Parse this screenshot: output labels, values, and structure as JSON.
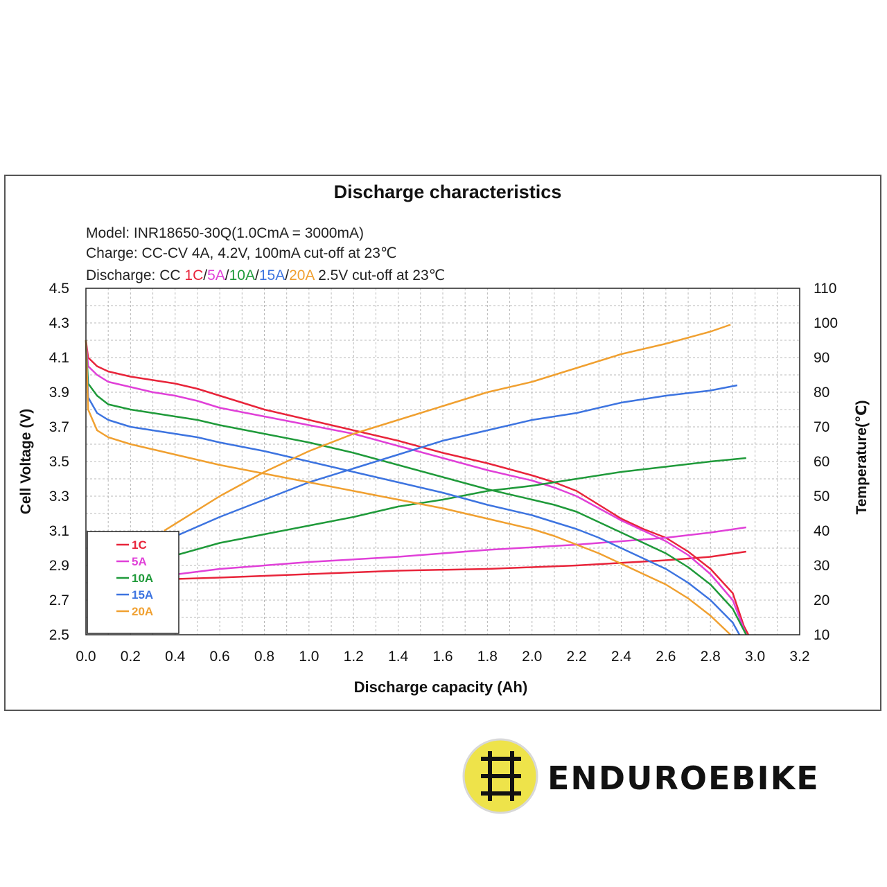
{
  "brand": {
    "name": "ENDUROEBIKE"
  },
  "chart_data": {
    "type": "line",
    "title": "Discharge characteristics",
    "info_lines": {
      "model": "Model: INR18650-30Q(1.0CmA = 3000mA)",
      "charge": "Charge: CC-CV 4A, 4.2V, 100mA cut-off at 23℃",
      "discharge_prefix": "Discharge: CC ",
      "discharge_suffix": " 2.5V cut-off at 23℃"
    },
    "xlabel": "Discharge capacity (Ah)",
    "ylabel": "Cell Voltage (V)",
    "y2label": "Temperature(℃)",
    "xlim": [
      0,
      3.2
    ],
    "ylim": [
      2.5,
      4.5
    ],
    "y2lim": [
      10,
      110
    ],
    "x_ticks": [
      "0.0",
      "0.2",
      "0.4",
      "0.6",
      "0.8",
      "1.0",
      "1.2",
      "1.4",
      "1.6",
      "1.8",
      "2.0",
      "2.2",
      "2.4",
      "2.6",
      "2.8",
      "3.0",
      "3.2"
    ],
    "y_ticks": [
      "2.5",
      "2.7",
      "2.9",
      "3.1",
      "3.3",
      "3.5",
      "3.7",
      "3.9",
      "4.1",
      "4.3",
      "4.5"
    ],
    "y2_ticks": [
      "10",
      "20",
      "30",
      "40",
      "50",
      "60",
      "70",
      "80",
      "90",
      "100",
      "110"
    ],
    "legend_position": "bottom-left",
    "grid": true,
    "series": [
      {
        "name": "1C",
        "color": "#e8243a",
        "voltage": [
          [
            0,
            4.2
          ],
          [
            0.01,
            4.1
          ],
          [
            0.05,
            4.05
          ],
          [
            0.1,
            4.02
          ],
          [
            0.2,
            3.99
          ],
          [
            0.3,
            3.97
          ],
          [
            0.4,
            3.95
          ],
          [
            0.5,
            3.92
          ],
          [
            0.6,
            3.88
          ],
          [
            0.8,
            3.8
          ],
          [
            1.0,
            3.74
          ],
          [
            1.2,
            3.68
          ],
          [
            1.4,
            3.62
          ],
          [
            1.6,
            3.55
          ],
          [
            1.8,
            3.49
          ],
          [
            2.0,
            3.42
          ],
          [
            2.1,
            3.38
          ],
          [
            2.2,
            3.33
          ],
          [
            2.3,
            3.25
          ],
          [
            2.4,
            3.17
          ],
          [
            2.5,
            3.11
          ],
          [
            2.6,
            3.06
          ],
          [
            2.7,
            2.98
          ],
          [
            2.8,
            2.88
          ],
          [
            2.9,
            2.74
          ],
          [
            2.95,
            2.55
          ],
          [
            2.97,
            2.5
          ]
        ],
        "temperature": [
          [
            0.35,
            26
          ],
          [
            0.6,
            26.5
          ],
          [
            1.0,
            27.5
          ],
          [
            1.4,
            28.5
          ],
          [
            1.8,
            29
          ],
          [
            2.2,
            30
          ],
          [
            2.6,
            31.5
          ],
          [
            2.8,
            32.5
          ],
          [
            2.96,
            34
          ]
        ]
      },
      {
        "name": "5A",
        "color": "#e040d8",
        "voltage": [
          [
            0,
            4.2
          ],
          [
            0.01,
            4.05
          ],
          [
            0.05,
            4.0
          ],
          [
            0.1,
            3.96
          ],
          [
            0.2,
            3.93
          ],
          [
            0.3,
            3.9
          ],
          [
            0.4,
            3.88
          ],
          [
            0.5,
            3.85
          ],
          [
            0.6,
            3.81
          ],
          [
            0.8,
            3.76
          ],
          [
            1.0,
            3.71
          ],
          [
            1.2,
            3.66
          ],
          [
            1.4,
            3.59
          ],
          [
            1.6,
            3.52
          ],
          [
            1.8,
            3.45
          ],
          [
            2.0,
            3.39
          ],
          [
            2.1,
            3.35
          ],
          [
            2.2,
            3.3
          ],
          [
            2.3,
            3.23
          ],
          [
            2.4,
            3.16
          ],
          [
            2.5,
            3.1
          ],
          [
            2.6,
            3.04
          ],
          [
            2.7,
            2.96
          ],
          [
            2.8,
            2.85
          ],
          [
            2.9,
            2.7
          ],
          [
            2.96,
            2.5
          ]
        ],
        "temperature": [
          [
            0.35,
            27
          ],
          [
            0.6,
            29
          ],
          [
            1.0,
            31
          ],
          [
            1.4,
            32.5
          ],
          [
            1.8,
            34.5
          ],
          [
            2.2,
            36
          ],
          [
            2.6,
            38
          ],
          [
            2.8,
            39.5
          ],
          [
            2.96,
            41
          ]
        ]
      },
      {
        "name": "10A",
        "color": "#1f9a3a",
        "voltage": [
          [
            0,
            4.2
          ],
          [
            0.01,
            3.95
          ],
          [
            0.05,
            3.88
          ],
          [
            0.1,
            3.83
          ],
          [
            0.2,
            3.8
          ],
          [
            0.3,
            3.78
          ],
          [
            0.4,
            3.76
          ],
          [
            0.5,
            3.74
          ],
          [
            0.6,
            3.71
          ],
          [
            0.8,
            3.66
          ],
          [
            1.0,
            3.61
          ],
          [
            1.2,
            3.55
          ],
          [
            1.4,
            3.48
          ],
          [
            1.6,
            3.41
          ],
          [
            1.8,
            3.34
          ],
          [
            2.0,
            3.28
          ],
          [
            2.1,
            3.25
          ],
          [
            2.2,
            3.21
          ],
          [
            2.3,
            3.15
          ],
          [
            2.4,
            3.09
          ],
          [
            2.5,
            3.03
          ],
          [
            2.6,
            2.97
          ],
          [
            2.7,
            2.89
          ],
          [
            2.8,
            2.79
          ],
          [
            2.9,
            2.65
          ],
          [
            2.96,
            2.5
          ]
        ],
        "temperature": [
          [
            0.35,
            32
          ],
          [
            0.6,
            36.5
          ],
          [
            0.8,
            39
          ],
          [
            1.0,
            41.5
          ],
          [
            1.2,
            44
          ],
          [
            1.4,
            47
          ],
          [
            1.6,
            49
          ],
          [
            1.8,
            51.5
          ],
          [
            2.0,
            53
          ],
          [
            2.2,
            55
          ],
          [
            2.4,
            57
          ],
          [
            2.6,
            58.5
          ],
          [
            2.8,
            60
          ],
          [
            2.96,
            61
          ]
        ]
      },
      {
        "name": "15A",
        "color": "#3d74e0",
        "voltage": [
          [
            0,
            4.2
          ],
          [
            0.01,
            3.87
          ],
          [
            0.05,
            3.78
          ],
          [
            0.1,
            3.74
          ],
          [
            0.2,
            3.7
          ],
          [
            0.3,
            3.68
          ],
          [
            0.4,
            3.66
          ],
          [
            0.5,
            3.64
          ],
          [
            0.6,
            3.61
          ],
          [
            0.8,
            3.56
          ],
          [
            1.0,
            3.5
          ],
          [
            1.2,
            3.44
          ],
          [
            1.4,
            3.38
          ],
          [
            1.6,
            3.32
          ],
          [
            1.8,
            3.25
          ],
          [
            2.0,
            3.19
          ],
          [
            2.1,
            3.15
          ],
          [
            2.2,
            3.11
          ],
          [
            2.3,
            3.06
          ],
          [
            2.4,
            3.0
          ],
          [
            2.5,
            2.94
          ],
          [
            2.6,
            2.88
          ],
          [
            2.7,
            2.8
          ],
          [
            2.8,
            2.7
          ],
          [
            2.9,
            2.57
          ],
          [
            2.93,
            2.5
          ]
        ],
        "temperature": [
          [
            0.35,
            37
          ],
          [
            0.6,
            44
          ],
          [
            0.8,
            49
          ],
          [
            1.0,
            54
          ],
          [
            1.2,
            58
          ],
          [
            1.4,
            62
          ],
          [
            1.6,
            66
          ],
          [
            1.8,
            69
          ],
          [
            2.0,
            72
          ],
          [
            2.2,
            74
          ],
          [
            2.4,
            77
          ],
          [
            2.6,
            79
          ],
          [
            2.8,
            80.5
          ],
          [
            2.92,
            82
          ]
        ]
      },
      {
        "name": "20A",
        "color": "#f0a030",
        "voltage": [
          [
            0,
            4.2
          ],
          [
            0.01,
            3.8
          ],
          [
            0.05,
            3.68
          ],
          [
            0.1,
            3.64
          ],
          [
            0.2,
            3.6
          ],
          [
            0.3,
            3.57
          ],
          [
            0.4,
            3.54
          ],
          [
            0.5,
            3.51
          ],
          [
            0.6,
            3.48
          ],
          [
            0.8,
            3.43
          ],
          [
            1.0,
            3.38
          ],
          [
            1.2,
            3.33
          ],
          [
            1.4,
            3.28
          ],
          [
            1.6,
            3.23
          ],
          [
            1.8,
            3.17
          ],
          [
            2.0,
            3.11
          ],
          [
            2.1,
            3.07
          ],
          [
            2.2,
            3.02
          ],
          [
            2.3,
            2.97
          ],
          [
            2.4,
            2.91
          ],
          [
            2.5,
            2.85
          ],
          [
            2.6,
            2.79
          ],
          [
            2.7,
            2.71
          ],
          [
            2.8,
            2.61
          ],
          [
            2.89,
            2.5
          ]
        ],
        "temperature": [
          [
            0.35,
            40
          ],
          [
            0.6,
            50
          ],
          [
            0.8,
            57
          ],
          [
            1.0,
            63
          ],
          [
            1.2,
            68
          ],
          [
            1.4,
            72
          ],
          [
            1.6,
            76
          ],
          [
            1.8,
            80
          ],
          [
            2.0,
            83
          ],
          [
            2.2,
            87
          ],
          [
            2.4,
            91
          ],
          [
            2.6,
            94
          ],
          [
            2.8,
            97.5
          ],
          [
            2.89,
            99.5
          ]
        ]
      }
    ]
  }
}
